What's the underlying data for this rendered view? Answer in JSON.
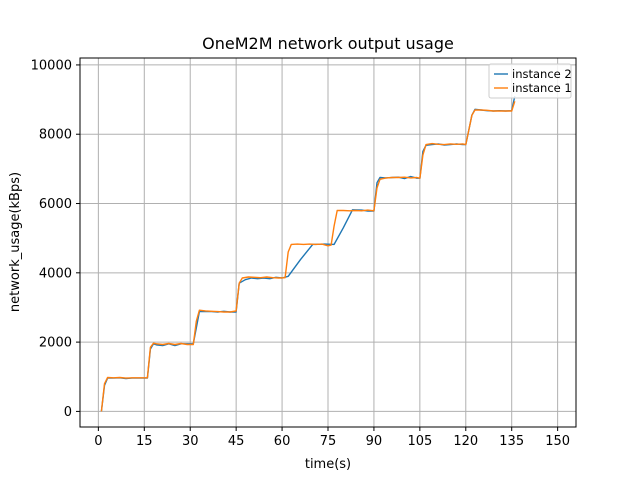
{
  "chart_data": {
    "type": "line",
    "title": "OneM2M network output usage",
    "xlabel": "time(s)",
    "ylabel": "network_usage(kBps)",
    "xlim": [
      -6,
      156
    ],
    "ylim": [
      -450,
      10200
    ],
    "xticks": [
      0,
      15,
      30,
      45,
      60,
      75,
      90,
      105,
      120,
      135,
      150
    ],
    "yticks": [
      0,
      2000,
      4000,
      6000,
      8000,
      10000
    ],
    "grid": true,
    "legend_position": "top-right",
    "series": [
      {
        "name": "instance 2",
        "color": "#1f77b4",
        "x": [
          1,
          2,
          3,
          5,
          7,
          9,
          11,
          13,
          15,
          16,
          17,
          18,
          19,
          21,
          23,
          25,
          27,
          29,
          31,
          33,
          35,
          37,
          39,
          41,
          43,
          45,
          46,
          48,
          50,
          52,
          54,
          56,
          58,
          60,
          62,
          66,
          70,
          74,
          77,
          80,
          83,
          86,
          88,
          90,
          91,
          92,
          94,
          96,
          98,
          100,
          102,
          104,
          105,
          106,
          107,
          109,
          111,
          113,
          115,
          117,
          119,
          120,
          122,
          123,
          125,
          127,
          129,
          131,
          133,
          135,
          136
        ],
        "y": [
          0,
          750,
          960,
          960,
          970,
          950,
          960,
          960,
          960,
          960,
          1800,
          1950,
          1920,
          1900,
          1950,
          1900,
          1950,
          1950,
          1950,
          2880,
          2880,
          2880,
          2870,
          2890,
          2870,
          2870,
          3700,
          3800,
          3850,
          3830,
          3850,
          3830,
          3870,
          3850,
          3900,
          4380,
          4820,
          4830,
          4820,
          5300,
          5820,
          5810,
          5780,
          5780,
          6600,
          6750,
          6740,
          6750,
          6760,
          6720,
          6780,
          6730,
          6730,
          7500,
          7680,
          7700,
          7720,
          7690,
          7700,
          7720,
          7700,
          7700,
          8550,
          8720,
          8700,
          8680,
          8670,
          8680,
          8670,
          8680,
          9100
        ]
      },
      {
        "name": "instance 1",
        "color": "#ff7f0e",
        "x": [
          1,
          2,
          3,
          5,
          7,
          9,
          11,
          13,
          15,
          16,
          17,
          18,
          19,
          21,
          23,
          25,
          27,
          29,
          31,
          32,
          33,
          35,
          37,
          39,
          41,
          43,
          45,
          46,
          47,
          49,
          51,
          53,
          55,
          57,
          59,
          61,
          62,
          63,
          65,
          67,
          69,
          71,
          73,
          75,
          76,
          77,
          78,
          80,
          82,
          84,
          86,
          88,
          90,
          91,
          92,
          94,
          96,
          98,
          100,
          102,
          104,
          105,
          106,
          107,
          109,
          111,
          113,
          115,
          117,
          119,
          120,
          122,
          123,
          125,
          127,
          129,
          131,
          133,
          135,
          136
        ],
        "y": [
          0,
          800,
          980,
          970,
          980,
          960,
          970,
          970,
          970,
          970,
          1850,
          1970,
          1950,
          1930,
          1960,
          1930,
          1960,
          1930,
          1930,
          2600,
          2920,
          2900,
          2890,
          2880,
          2870,
          2870,
          2900,
          3700,
          3850,
          3880,
          3870,
          3860,
          3880,
          3860,
          3850,
          3860,
          4600,
          4820,
          4830,
          4820,
          4830,
          4820,
          4830,
          4780,
          4800,
          5350,
          5800,
          5800,
          5790,
          5800,
          5790,
          5810,
          5790,
          6450,
          6700,
          6740,
          6750,
          6750,
          6760,
          6740,
          6750,
          6730,
          7400,
          7700,
          7730,
          7710,
          7700,
          7720,
          7710,
          7720,
          7700,
          8550,
          8700,
          8700,
          8690,
          8670,
          8670,
          8670,
          8670,
          8950
        ]
      }
    ]
  }
}
